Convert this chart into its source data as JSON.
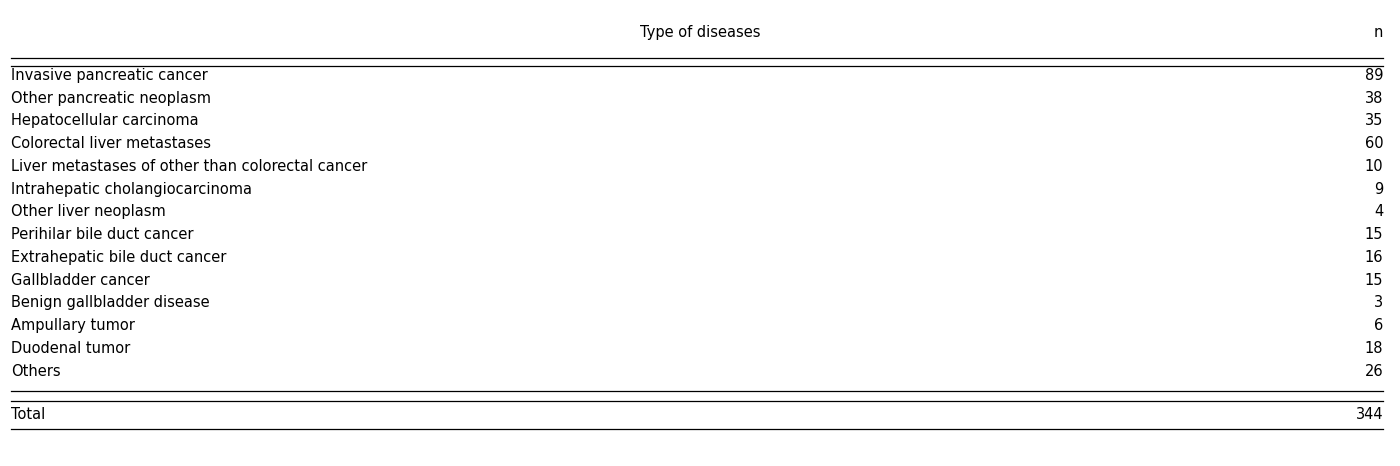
{
  "title": "Type of diseases",
  "col_header_right": "n",
  "rows": [
    {
      "disease": "Invasive pancreatic cancer",
      "n": "89"
    },
    {
      "disease": "Other pancreatic neoplasm",
      "n": "38"
    },
    {
      "disease": "Hepatocellular carcinoma",
      "n": "35"
    },
    {
      "disease": "Colorectal liver metastases",
      "n": "60"
    },
    {
      "disease": "Liver metastases of other than colorectal cancer",
      "n": "10"
    },
    {
      "disease": "Intrahepatic cholangiocarcinoma",
      "n": "9"
    },
    {
      "disease": "Other liver neoplasm",
      "n": "4"
    },
    {
      "disease": "Perihilar bile duct cancer",
      "n": "15"
    },
    {
      "disease": "Extrahepatic bile duct cancer",
      "n": "16"
    },
    {
      "disease": "Gallbladder cancer",
      "n": "15"
    },
    {
      "disease": "Benign gallbladder disease",
      "n": "3"
    },
    {
      "disease": "Ampullary tumor",
      "n": "6"
    },
    {
      "disease": "Duodenal tumor",
      "n": "18"
    },
    {
      "disease": "Others",
      "n": "26"
    }
  ],
  "total_label": "Total",
  "total_n": "344",
  "background_color": "#ffffff",
  "text_color": "#000000",
  "font_size": 10.5,
  "title_font_size": 10.5,
  "figsize": [
    14.0,
    4.66
  ],
  "dpi": 100
}
